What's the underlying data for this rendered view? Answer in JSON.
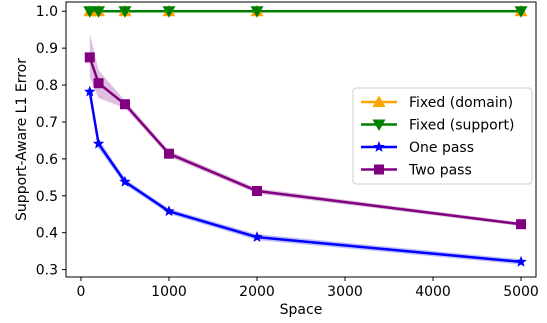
{
  "chart_data": {
    "type": "line",
    "title": "",
    "xlabel": "Space",
    "ylabel": "Support-Aware L1 Error",
    "xlim": [
      -170,
      5170
    ],
    "ylim": [
      0.28,
      1.025
    ],
    "xticks": [
      0,
      1000,
      2000,
      3000,
      4000,
      5000
    ],
    "yticks": [
      0.3,
      0.4,
      0.5,
      0.6,
      0.7,
      0.8,
      0.9,
      1.0
    ],
    "ytick_labels": [
      "0.3",
      "0.4",
      "0.5",
      "0.6",
      "0.7",
      "0.8",
      "0.9",
      "1.0"
    ],
    "legend_position": "center-right",
    "grid": false,
    "x": [
      100,
      200,
      500,
      1000,
      2000,
      5000
    ],
    "series": [
      {
        "name": "Fixed (domain)",
        "color": "#FFA500",
        "marker": "triangle-up",
        "values": [
          1.0,
          1.0,
          1.0,
          1.0,
          1.0,
          1.0
        ],
        "band": [
          [
            1.0,
            1.0
          ],
          [
            1.0,
            1.0
          ],
          [
            1.0,
            1.0
          ],
          [
            1.0,
            1.0
          ],
          [
            1.0,
            1.0
          ],
          [
            1.0,
            1.0
          ]
        ]
      },
      {
        "name": "Fixed (support)",
        "color": "#008000",
        "marker": "triangle-down",
        "values": [
          1.0,
          1.0,
          1.0,
          1.0,
          1.0,
          1.0
        ],
        "band": [
          [
            1.0,
            1.0
          ],
          [
            1.0,
            1.0
          ],
          [
            1.0,
            1.0
          ],
          [
            1.0,
            1.0
          ],
          [
            1.0,
            1.0
          ],
          [
            1.0,
            1.0
          ]
        ]
      },
      {
        "name": "One pass",
        "color": "#0000FF",
        "marker": "star",
        "values": [
          0.782,
          0.641,
          0.538,
          0.458,
          0.388,
          0.321
        ],
        "band": [
          [
            0.777,
            0.788
          ],
          [
            0.628,
            0.654
          ],
          [
            0.53,
            0.546
          ],
          [
            0.451,
            0.465
          ],
          [
            0.38,
            0.396
          ],
          [
            0.314,
            0.328
          ]
        ]
      },
      {
        "name": "Two pass",
        "color": "#800080",
        "marker": "square",
        "values": [
          0.875,
          0.805,
          0.748,
          0.614,
          0.513,
          0.423
        ],
        "band": [
          [
            0.82,
            0.94
          ],
          [
            0.765,
            0.84
          ],
          [
            0.738,
            0.758
          ],
          [
            0.606,
            0.622
          ],
          [
            0.506,
            0.52
          ],
          [
            0.418,
            0.428
          ]
        ]
      }
    ]
  }
}
